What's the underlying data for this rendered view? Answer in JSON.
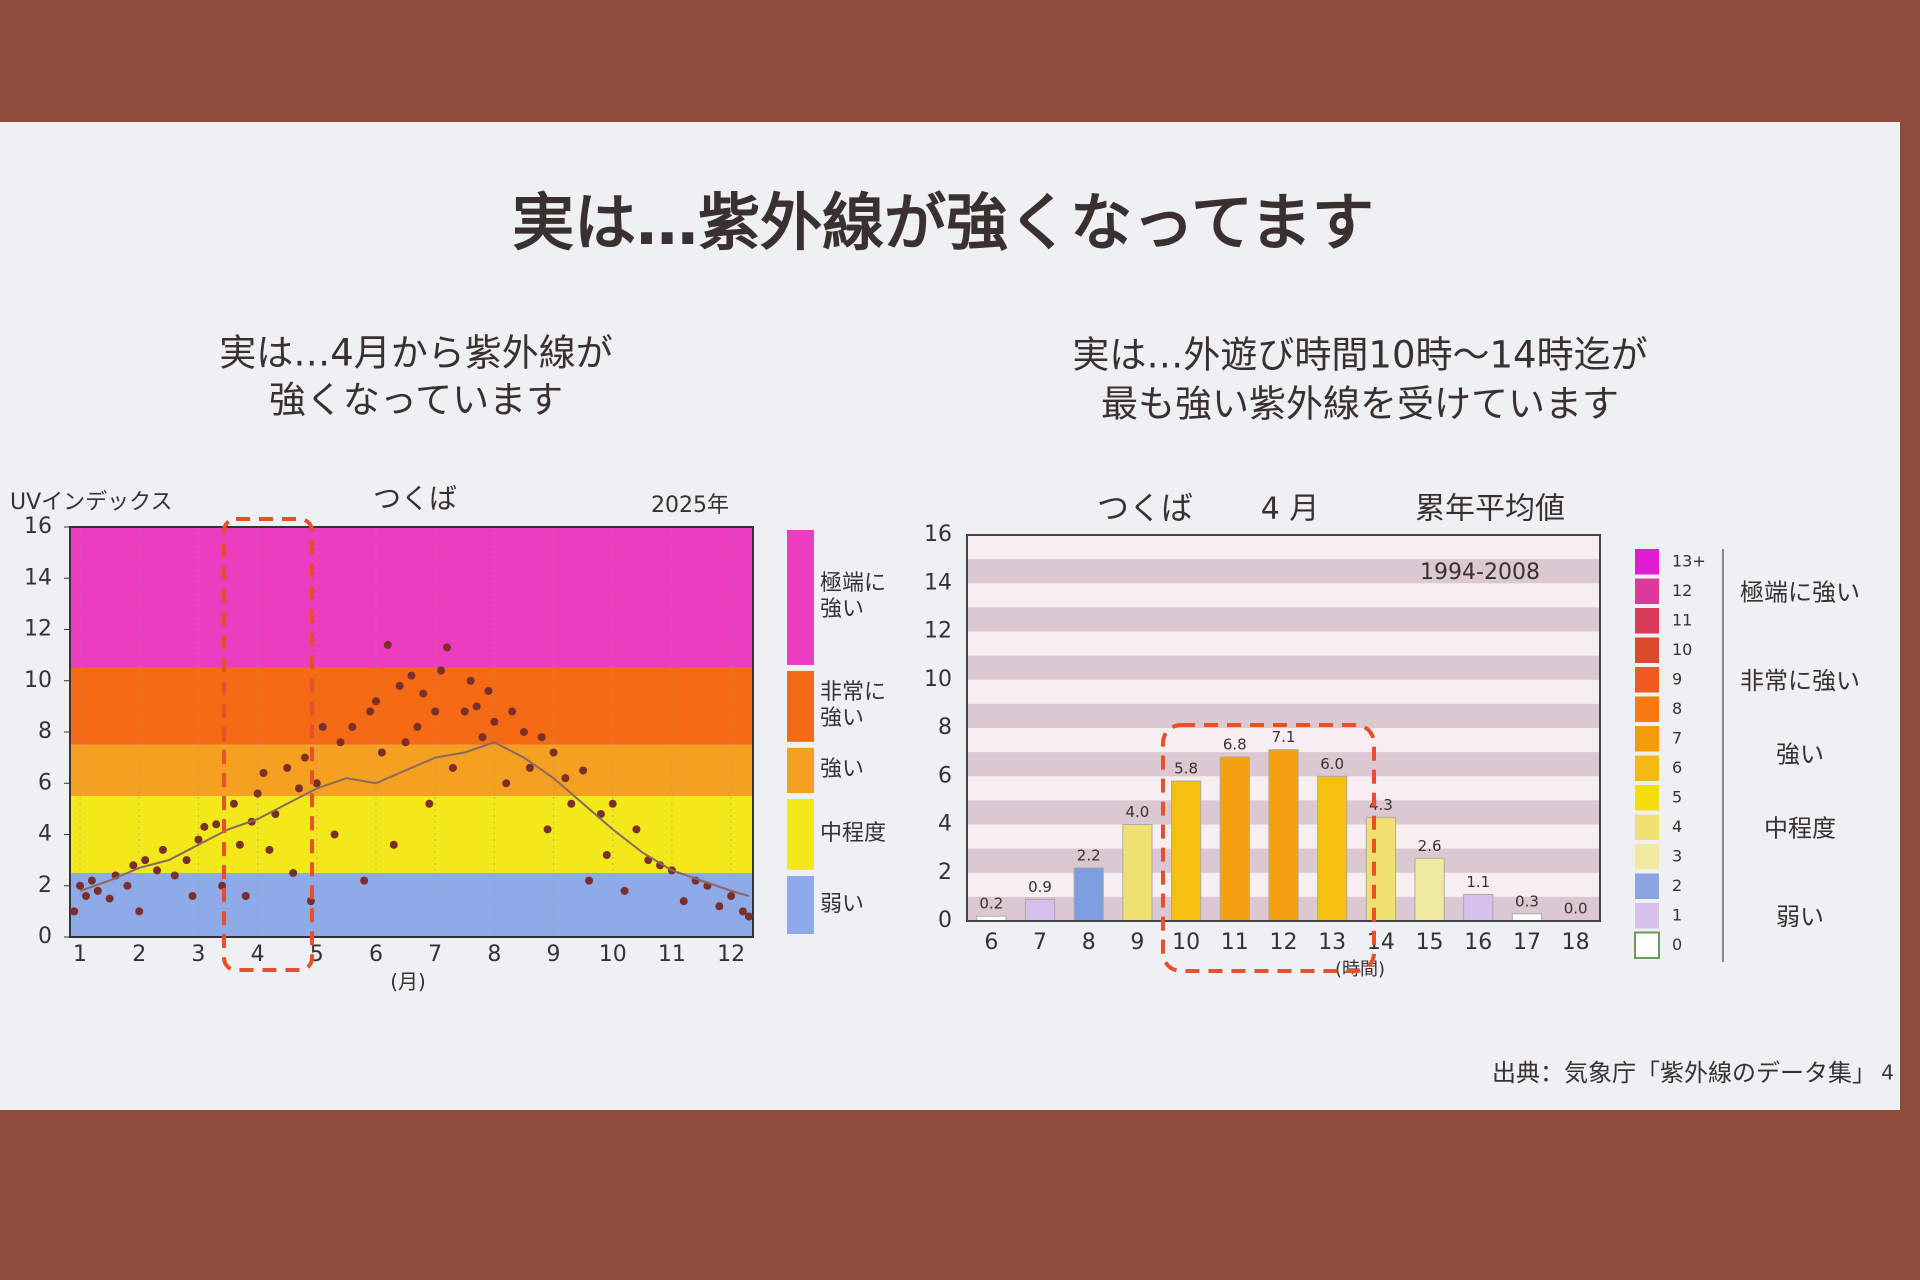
{
  "title": "実は…紫外線が強くなってます",
  "left_subtitle": [
    "実は…4月から紫外線が",
    "強くなっています"
  ],
  "right_subtitle": [
    "実は…外遊び時間10時～14時迄が",
    "最も強い紫外線を受けています"
  ],
  "source": "出典：気象庁「紫外線のデータ集」",
  "page_number": "4",
  "chart_data": [
    {
      "type": "scatter",
      "title": "つくば",
      "year_label": "2025年",
      "y_label": "UVインデックス",
      "x_label": "(月)",
      "xlim": [
        0.83,
        12.37
      ],
      "xticks": [
        1,
        2,
        3,
        4,
        5,
        6,
        7,
        8,
        9,
        10,
        11,
        12
      ],
      "ylim": [
        0,
        16
      ],
      "yticks": [
        0,
        2,
        4,
        6,
        8,
        10,
        12,
        14,
        16
      ],
      "grid": true,
      "bands": [
        {
          "from": 10.5,
          "to": 16,
          "color": "#ec3cc0",
          "label": "極端に強い"
        },
        {
          "from": 7.5,
          "to": 10.5,
          "color": "#f56a14",
          "label": "非常に強い"
        },
        {
          "from": 5.5,
          "to": 7.5,
          "color": "#f5a020",
          "label": "強い"
        },
        {
          "from": 2.5,
          "to": 5.5,
          "color": "#f2e81a",
          "label": "中程度"
        },
        {
          "from": 0,
          "to": 2.5,
          "color": "#8eaae8",
          "label": "弱い"
        }
      ],
      "series": [
        {
          "type": "scatter",
          "color": "#7a2f2a",
          "x": [
            0.9,
            1.0,
            1.1,
            1.2,
            1.3,
            1.5,
            1.6,
            1.8,
            1.9,
            2.0,
            2.1,
            2.3,
            2.4,
            2.6,
            2.8,
            2.9,
            3.0,
            3.1,
            3.3,
            3.4,
            3.6,
            3.7,
            3.8,
            3.9,
            4.0,
            4.1,
            4.2,
            4.3,
            4.5,
            4.6,
            4.7,
            4.8,
            4.9,
            5.0,
            5.1,
            5.3,
            5.4,
            5.6,
            5.8,
            5.9,
            6.0,
            6.1,
            6.2,
            6.3,
            6.4,
            6.5,
            6.6,
            6.7,
            6.8,
            6.9,
            7.0,
            7.1,
            7.2,
            7.3,
            7.5,
            7.6,
            7.7,
            7.8,
            7.9,
            8.0,
            8.2,
            8.3,
            8.5,
            8.6,
            8.8,
            8.9,
            9.0,
            9.2,
            9.3,
            9.5,
            9.6,
            9.8,
            9.9,
            10.0,
            10.2,
            10.4,
            10.6,
            10.8,
            11.0,
            11.2,
            11.4,
            11.6,
            11.8,
            12.0,
            12.2,
            12.3
          ],
          "values": [
            1.0,
            2.0,
            1.6,
            2.2,
            1.8,
            1.5,
            2.4,
            2.0,
            2.8,
            1.0,
            3.0,
            2.6,
            3.4,
            2.4,
            3.0,
            1.6,
            3.8,
            4.3,
            4.4,
            2.0,
            5.2,
            3.6,
            1.6,
            4.5,
            5.6,
            6.4,
            3.4,
            4.8,
            6.6,
            2.5,
            5.8,
            7.0,
            1.4,
            6.0,
            8.2,
            4.0,
            7.6,
            8.2,
            2.2,
            8.8,
            9.2,
            7.2,
            11.4,
            3.6,
            9.8,
            7.6,
            10.2,
            8.2,
            9.5,
            5.2,
            8.8,
            10.4,
            11.3,
            6.6,
            8.8,
            10.0,
            9.0,
            7.8,
            9.6,
            8.4,
            6.0,
            8.8,
            8.0,
            6.6,
            7.8,
            4.2,
            7.2,
            6.2,
            5.2,
            6.5,
            2.2,
            4.8,
            3.2,
            5.2,
            1.8,
            4.2,
            3.0,
            2.8,
            2.6,
            1.4,
            2.2,
            2.0,
            1.2,
            1.6,
            1.0,
            0.8
          ]
        },
        {
          "type": "line",
          "color": "#8a6a60",
          "x": [
            1,
            1.5,
            2,
            2.5,
            3,
            3.5,
            4,
            4.5,
            5,
            5.5,
            6,
            6.5,
            7,
            7.5,
            8,
            8.5,
            9,
            9.5,
            10,
            10.5,
            11,
            11.5,
            12,
            12.3
          ],
          "values": [
            1.8,
            2.2,
            2.7,
            3.0,
            3.6,
            4.2,
            4.6,
            5.2,
            5.8,
            6.2,
            6.0,
            6.5,
            7.0,
            7.2,
            7.6,
            7.0,
            6.2,
            5.2,
            4.2,
            3.3,
            2.6,
            2.2,
            1.8,
            1.6
          ]
        }
      ]
    },
    {
      "type": "bar",
      "title": "つくば",
      "month_label": "4 月",
      "stat_label": "累年平均値",
      "period": "1994-2008",
      "x_label": "(時間)",
      "categories": [
        "6",
        "7",
        "8",
        "9",
        "10",
        "11",
        "12",
        "13",
        "14",
        "15",
        "16",
        "17",
        "18"
      ],
      "values": [
        0.2,
        0.9,
        2.2,
        4.0,
        5.8,
        6.8,
        7.1,
        6.0,
        4.3,
        2.6,
        1.1,
        0.3,
        0.0
      ],
      "value_labels": [
        "0.2",
        "0.9",
        "2.2",
        "4.0",
        "5.8",
        "6.8",
        "7.1",
        "6.0",
        "4.3",
        "2.6",
        "1.1",
        "0.3",
        "0.0"
      ],
      "colors": [
        "#ffffff",
        "#d8c0ec",
        "#7a9ee0",
        "#f0e070",
        "#f5c010",
        "#f5a010",
        "#f5a010",
        "#f5c010",
        "#f0e070",
        "#f0eaa0",
        "#d8c0ec",
        "#ffffff",
        "#ffffff"
      ],
      "ylim": [
        0,
        16
      ],
      "yticks": [
        0,
        2,
        4,
        6,
        8,
        10,
        12,
        14,
        16
      ],
      "grid": true,
      "legend": {
        "levels": [
          {
            "label": "13+",
            "color": "#e21cd3"
          },
          {
            "label": "12",
            "color": "#dc3a9a"
          },
          {
            "label": "11",
            "color": "#d83a5a"
          },
          {
            "label": "10",
            "color": "#d94a2a"
          },
          {
            "label": "9",
            "color": "#f05a1e"
          },
          {
            "label": "8",
            "color": "#f57a10"
          },
          {
            "label": "7",
            "color": "#f59a0a"
          },
          {
            "label": "6",
            "color": "#f5b818"
          },
          {
            "label": "5",
            "color": "#f5de10"
          },
          {
            "label": "4",
            "color": "#f0e070"
          },
          {
            "label": "3",
            "color": "#f0eaa0"
          },
          {
            "label": "2",
            "color": "#8aa6e0"
          },
          {
            "label": "1",
            "color": "#d8c0ec"
          },
          {
            "label": "0",
            "color": "#ffffff"
          }
        ],
        "categories": [
          "極端に強い",
          "非常に強い",
          "強い",
          "中程度",
          "弱い"
        ]
      }
    }
  ]
}
